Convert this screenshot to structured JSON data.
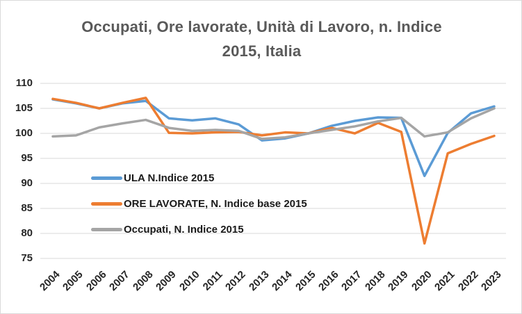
{
  "window": {
    "background": "#FFFFFF",
    "border_color": "#D9D9D9"
  },
  "chart_data": {
    "type": "line",
    "title": "Occupati, Ore lavorate, Unità di Lavoro, n. Indice 2015, Italia",
    "title_line1": "Occupati, Ore lavorate, Unità di Lavoro, n. Indice",
    "title_line2": "2015, Italia",
    "title_color": "#595959",
    "x": [
      2004,
      2005,
      2006,
      2007,
      2008,
      2009,
      2010,
      2011,
      2012,
      2013,
      2014,
      2015,
      2016,
      2017,
      2018,
      2019,
      2020,
      2021,
      2022,
      2023
    ],
    "series": [
      {
        "name": "ULA N.Indice 2015",
        "color": "#5B9BD5",
        "values": [
          106.8,
          106.0,
          105.0,
          106.0,
          106.5,
          103.0,
          102.6,
          103.0,
          101.8,
          98.6,
          99.0,
          100.0,
          101.5,
          102.5,
          103.2,
          103.1,
          91.5,
          100.1,
          104.0,
          105.4
        ]
      },
      {
        "name": "ORE LAVORATE, N. Indice base 2015",
        "color": "#ED7D31",
        "values": [
          106.9,
          106.1,
          105.0,
          106.1,
          107.1,
          100.1,
          100.0,
          100.2,
          100.3,
          99.6,
          100.2,
          100.0,
          101.1,
          100.0,
          102.1,
          100.3,
          78.0,
          96.0,
          97.9,
          99.5
        ]
      },
      {
        "name": "Occupati, N. Indice 2015",
        "color": "#A5A5A5",
        "values": [
          99.4,
          99.6,
          101.2,
          102.0,
          102.7,
          101.1,
          100.5,
          100.7,
          100.5,
          98.9,
          99.2,
          100.0,
          100.7,
          101.4,
          102.4,
          103.1,
          99.4,
          100.2,
          103.0,
          105.0
        ]
      }
    ],
    "ylim": [
      75,
      110
    ],
    "yticks": [
      110,
      105,
      100,
      95,
      90,
      85,
      80,
      75
    ],
    "grid": "horizontal-only",
    "gridline_color": "#D9D9D9",
    "axis_label_color": "#262626",
    "legend_position": "inside-left",
    "legend_orientation": "vertical"
  }
}
